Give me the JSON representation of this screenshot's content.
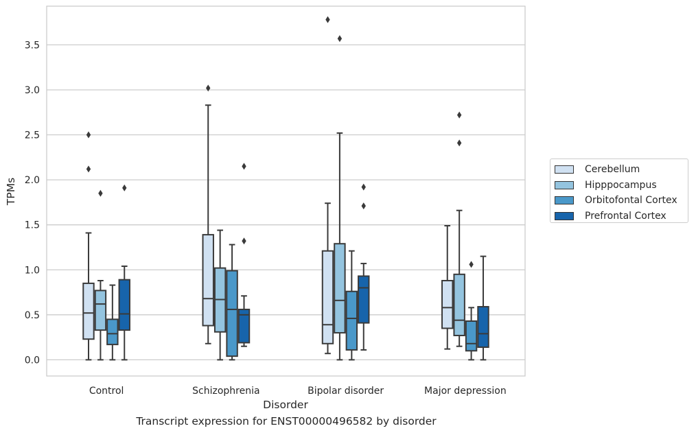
{
  "chart_data": {
    "type": "box",
    "title": "",
    "xlabel": "Disorder",
    "ylabel": "TPMs",
    "caption": "Transcript expression for ENST00000496582 by disorder",
    "ylim": [
      -0.18,
      3.93
    ],
    "yticks": [
      0.0,
      0.5,
      1.0,
      1.5,
      2.0,
      2.5,
      3.0,
      3.5
    ],
    "ytick_labels": [
      "0.0",
      "0.5",
      "1.0",
      "1.5",
      "2.0",
      "2.5",
      "3.0",
      "3.5"
    ],
    "grid": "horizontal",
    "legend_position": "right",
    "categories": [
      "Control",
      "Schizophrenia",
      "Bipolar disorder",
      "Major depression"
    ],
    "series": [
      {
        "name": "Cerebellum",
        "color": "#d0e1f2",
        "boxes": [
          {
            "min": 0.0,
            "q1": 0.23,
            "median": 0.52,
            "q3": 0.85,
            "max": 1.41,
            "outliers": [
              2.12,
              2.5
            ]
          },
          {
            "min": 0.18,
            "q1": 0.38,
            "median": 0.68,
            "q3": 1.39,
            "max": 2.83,
            "outliers": [
              3.02
            ]
          },
          {
            "min": 0.07,
            "q1": 0.18,
            "median": 0.39,
            "q3": 1.21,
            "max": 1.74,
            "outliers": [
              3.78
            ]
          },
          {
            "min": 0.12,
            "q1": 0.35,
            "median": 0.58,
            "q3": 0.88,
            "max": 1.49,
            "outliers": []
          }
        ]
      },
      {
        "name": "Hipppocampus",
        "color": "#94c4df",
        "boxes": [
          {
            "min": 0.0,
            "q1": 0.33,
            "median": 0.62,
            "q3": 0.77,
            "max": 0.88,
            "outliers": [
              1.85
            ]
          },
          {
            "min": 0.0,
            "q1": 0.31,
            "median": 0.67,
            "q3": 1.02,
            "max": 1.44,
            "outliers": []
          },
          {
            "min": 0.0,
            "q1": 0.3,
            "median": 0.66,
            "q3": 1.29,
            "max": 2.52,
            "outliers": [
              3.57
            ]
          },
          {
            "min": 0.15,
            "q1": 0.27,
            "median": 0.44,
            "q3": 0.95,
            "max": 1.66,
            "outliers": [
              2.41,
              2.72
            ]
          }
        ]
      },
      {
        "name": "Orbitofontal Cortex",
        "color": "#4a98c9",
        "boxes": [
          {
            "min": 0.0,
            "q1": 0.17,
            "median": 0.29,
            "q3": 0.45,
            "max": 0.83,
            "outliers": []
          },
          {
            "min": 0.0,
            "q1": 0.04,
            "median": 0.56,
            "q3": 0.99,
            "max": 1.28,
            "outliers": []
          },
          {
            "min": 0.0,
            "q1": 0.11,
            "median": 0.46,
            "q3": 0.76,
            "max": 1.21,
            "outliers": []
          },
          {
            "min": 0.0,
            "q1": 0.1,
            "median": 0.18,
            "q3": 0.43,
            "max": 0.58,
            "outliers": [
              1.06
            ]
          }
        ]
      },
      {
        "name": "Prefrontal Cortex",
        "color": "#1764ab",
        "boxes": [
          {
            "min": 0.0,
            "q1": 0.33,
            "median": 0.51,
            "q3": 0.89,
            "max": 1.04,
            "outliers": [
              1.91
            ]
          },
          {
            "min": 0.15,
            "q1": 0.19,
            "median": 0.5,
            "q3": 0.56,
            "max": 0.71,
            "outliers": [
              1.32,
              2.15
            ]
          },
          {
            "min": 0.11,
            "q1": 0.41,
            "median": 0.8,
            "q3": 0.93,
            "max": 1.07,
            "outliers": [
              1.71,
              1.92
            ]
          },
          {
            "min": 0.0,
            "q1": 0.14,
            "median": 0.29,
            "q3": 0.59,
            "max": 1.15,
            "outliers": []
          }
        ]
      }
    ]
  }
}
